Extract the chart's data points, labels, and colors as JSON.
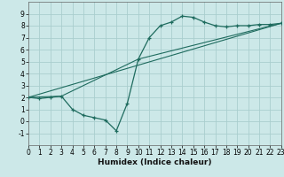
{
  "background_color": "#cce8e8",
  "grid_color": "#aacece",
  "line_color": "#1e6b5e",
  "xlabel": "Humidex (Indice chaleur)",
  "xlim": [
    0,
    23
  ],
  "ylim": [
    -2,
    10
  ],
  "xticks": [
    0,
    1,
    2,
    3,
    4,
    5,
    6,
    7,
    8,
    9,
    10,
    11,
    12,
    13,
    14,
    15,
    16,
    17,
    18,
    19,
    20,
    21,
    22,
    23
  ],
  "yticks": [
    -1,
    0,
    1,
    2,
    3,
    4,
    5,
    6,
    7,
    8,
    9
  ],
  "line1_x": [
    0,
    1,
    2,
    3,
    4,
    5,
    6,
    7,
    8,
    9,
    10,
    11,
    12,
    13,
    14,
    15,
    16,
    17,
    18,
    19,
    20,
    21,
    22,
    23
  ],
  "line1_y": [
    2.0,
    1.9,
    2.0,
    2.1,
    1.0,
    0.5,
    0.3,
    0.1,
    -0.8,
    1.5,
    5.2,
    7.0,
    8.0,
    8.3,
    8.8,
    8.7,
    8.3,
    8.0,
    7.9,
    8.0,
    8.0,
    8.1,
    8.1,
    8.2
  ],
  "line2_x": [
    0,
    3,
    10,
    23
  ],
  "line2_y": [
    2.0,
    2.1,
    5.2,
    8.2
  ],
  "line3_x": [
    0,
    23
  ],
  "line3_y": [
    2.0,
    8.2
  ],
  "tick_fontsize": 5.5,
  "xlabel_fontsize": 6.5
}
